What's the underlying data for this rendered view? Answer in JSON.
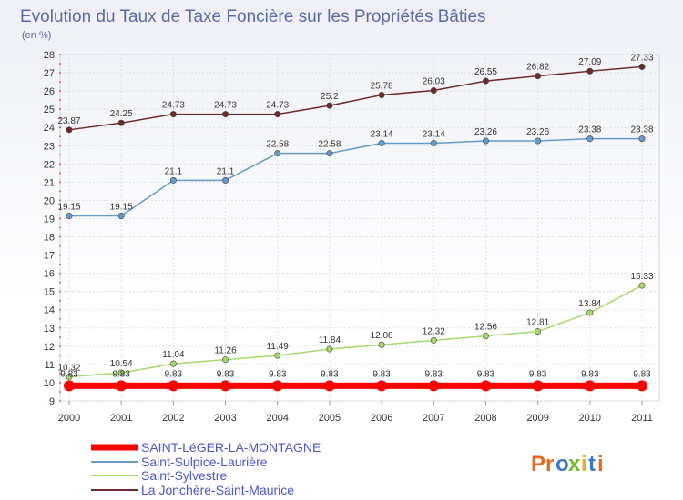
{
  "chart_data": {
    "type": "line",
    "title": "Evolution du Taux de Taxe Foncière sur les Propriétés Bâties",
    "subtitle": "(en %)",
    "x": [
      "2000",
      "2001",
      "2002",
      "2003",
      "2004",
      "2005",
      "2006",
      "2007",
      "2008",
      "2009",
      "2010",
      "2011"
    ],
    "ylim": [
      9,
      28
    ],
    "yticks": [
      9,
      10,
      11,
      12,
      13,
      14,
      15,
      16,
      17,
      18,
      19,
      20,
      21,
      22,
      23,
      24,
      25,
      26,
      27,
      28
    ],
    "grid": true,
    "legend_position": "bottom-left",
    "series": [
      {
        "name": "SAINT-LéGER-LA-MONTAGNE",
        "color": "#ff0000",
        "values": [
          9.83,
          9.83,
          9.83,
          9.83,
          9.83,
          9.83,
          9.83,
          9.83,
          9.83,
          9.83,
          9.83,
          9.83
        ],
        "labels": [
          "9.83",
          "9.83",
          "9.83",
          "9.83",
          "9.83",
          "9.83",
          "9.83",
          "9.83",
          "9.83",
          "9.83",
          "9.83",
          "9.83"
        ]
      },
      {
        "name": "Saint-Sulpice-Laurière",
        "color": "#6699cc",
        "values": [
          19.15,
          19.15,
          21.1,
          21.1,
          22.58,
          22.58,
          23.14,
          23.14,
          23.26,
          23.26,
          23.38,
          23.38
        ],
        "labels": [
          "19.15",
          "19.15",
          "21.1",
          "21.1",
          "22.58",
          "22.58",
          "23.14",
          "23.14",
          "23.26",
          "23.26",
          "23.38",
          "23.38"
        ]
      },
      {
        "name": "Saint-Sylvestre",
        "color": "#a6d96a",
        "values": [
          10.32,
          10.54,
          11.04,
          11.26,
          11.49,
          11.84,
          12.08,
          12.32,
          12.56,
          12.81,
          13.84,
          15.33
        ],
        "labels": [
          "10.32",
          "10.54",
          "11.04",
          "11.26",
          "11.49",
          "11.84",
          "12.08",
          "12.32",
          "12.56",
          "12.81",
          "13.84",
          "15.33"
        ]
      },
      {
        "name": "La Jonchère-Saint-Maurice",
        "color": "#6b2b2b",
        "values": [
          23.87,
          24.25,
          24.73,
          24.73,
          24.73,
          25.2,
          25.78,
          26.03,
          26.55,
          26.82,
          27.09,
          27.33
        ],
        "labels": [
          "23.87",
          "24.25",
          "24.73",
          "24.73",
          "24.73",
          "25.2",
          "25.78",
          "26.03",
          "26.55",
          "26.82",
          "27.09",
          "27.33"
        ]
      }
    ]
  },
  "brand": {
    "letters": [
      "P",
      "r",
      "o",
      "x",
      "i",
      "t",
      "i"
    ],
    "colors": [
      "#e66a1f",
      "#e66a1f",
      "#3b78c2",
      "#79b62c",
      "#e6b21f",
      "#3b78c2",
      "#e66a1f"
    ]
  }
}
